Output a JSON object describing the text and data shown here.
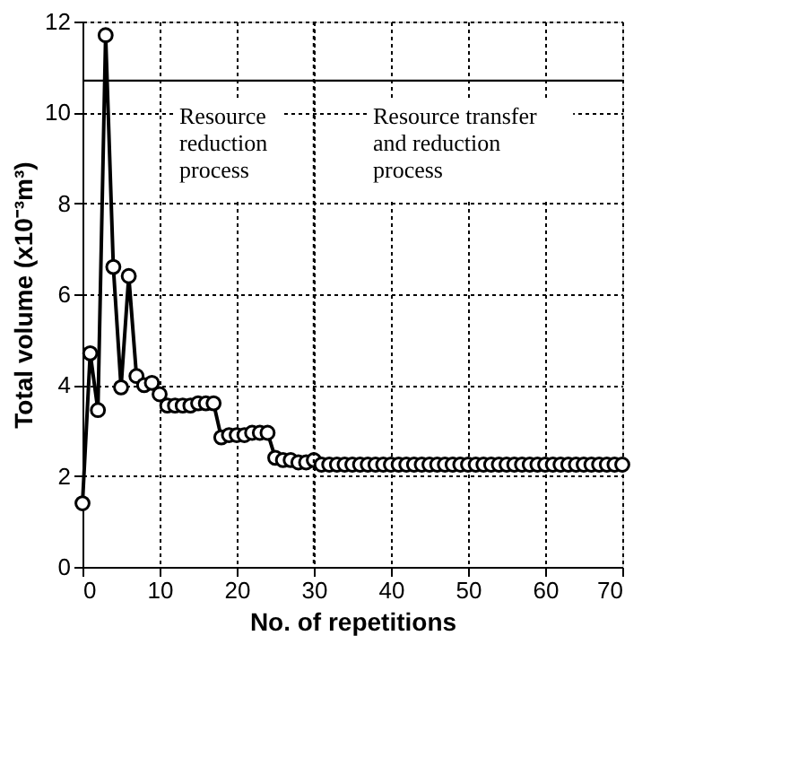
{
  "chart_data": {
    "type": "line",
    "xlabel": "No. of repetitions",
    "ylabel": "Total volume (x10⁻³m³)",
    "x": [
      0,
      1,
      2,
      3,
      4,
      5,
      6,
      7,
      8,
      9,
      10,
      11,
      12,
      13,
      14,
      15,
      16,
      17,
      18,
      19,
      20,
      21,
      22,
      23,
      24,
      25,
      26,
      27,
      28,
      29,
      30,
      31,
      32,
      33,
      34,
      35,
      36,
      37,
      38,
      39,
      40,
      41,
      42,
      43,
      44,
      45,
      46,
      47,
      48,
      49,
      50,
      51,
      52,
      53,
      54,
      55,
      56,
      57,
      58,
      59,
      60,
      61,
      62,
      63,
      64,
      65,
      66,
      67,
      68,
      69,
      70
    ],
    "series": [
      {
        "color": "#000000",
        "values": [
          1.4,
          4.7,
          3.45,
          11.7,
          6.6,
          3.95,
          6.4,
          4.2,
          4.0,
          4.05,
          3.8,
          3.55,
          3.55,
          3.55,
          3.55,
          3.6,
          3.6,
          3.6,
          2.85,
          2.9,
          2.9,
          2.9,
          2.95,
          2.95,
          2.95,
          2.4,
          2.35,
          2.35,
          2.3,
          2.3,
          2.35,
          2.25,
          2.25,
          2.25,
          2.25,
          2.25,
          2.25,
          2.25,
          2.25,
          2.25,
          2.25,
          2.25,
          2.25,
          2.25,
          2.25,
          2.25,
          2.25,
          2.25,
          2.25,
          2.25,
          2.25,
          2.25,
          2.25,
          2.25,
          2.25,
          2.25,
          2.25,
          2.25,
          2.25,
          2.25,
          2.25,
          2.25,
          2.25,
          2.25,
          2.25,
          2.25,
          2.25,
          2.25,
          2.25,
          2.25,
          2.25
        ]
      }
    ],
    "xlim": [
      0,
      70
    ],
    "ylim": [
      0,
      12
    ],
    "xticks": [
      0,
      10,
      20,
      30,
      40,
      50,
      60,
      70
    ],
    "yticks": [
      0,
      2,
      4,
      6,
      8,
      10,
      12
    ],
    "grid": true,
    "marker": "circle",
    "line_style": "solid",
    "ref_lines": [
      {
        "axis": "y",
        "value": 10.7,
        "color": "#000000",
        "line_style": "solid"
      },
      {
        "axis": "x",
        "value": 30,
        "color": "#000000",
        "line_style": "dotted"
      }
    ],
    "annotations": [
      "Resource\nreduction\nprocess",
      "Resource transfer\nand reduction\nprocess"
    ]
  }
}
